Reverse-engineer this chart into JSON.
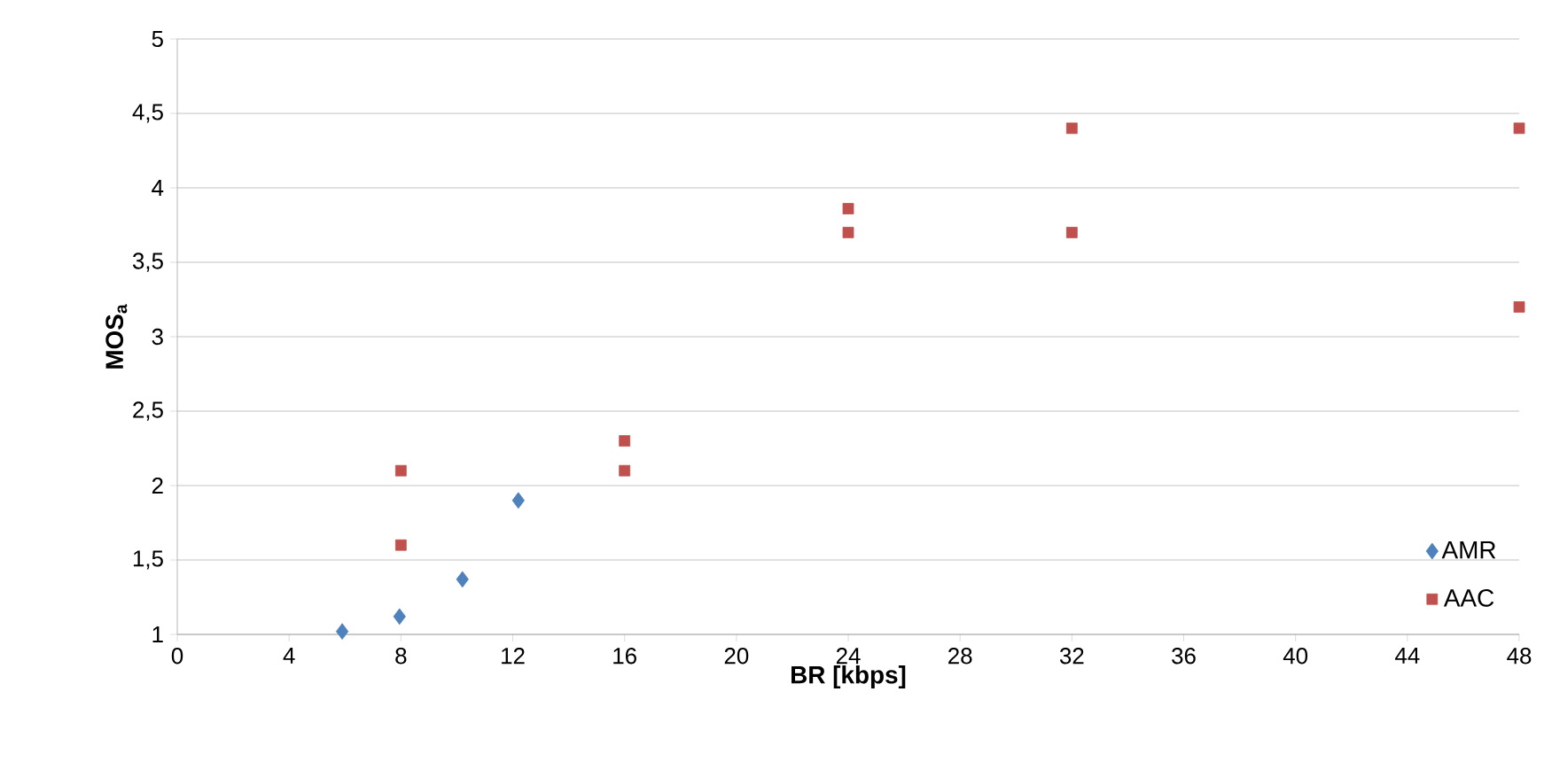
{
  "chart_data": {
    "type": "scatter",
    "xlabel": "BR [kbps]",
    "ylabel": "MOS$_{a}$",
    "series": [
      {
        "name": "AMR",
        "color": "#4f81bd",
        "marker": "diamond",
        "x": [
          5.9,
          7.95,
          10.2,
          12.2
        ],
        "values": [
          1.02,
          1.12,
          1.37,
          1.9
        ]
      },
      {
        "name": "AAC",
        "color": "#c0504d",
        "marker": "square",
        "x": [
          8,
          8,
          16,
          16,
          24,
          24,
          32,
          32,
          48,
          48
        ],
        "values": [
          2.1,
          1.6,
          2.3,
          2.1,
          3.86,
          3.7,
          4.4,
          3.7,
          4.4,
          3.2
        ]
      }
    ],
    "xlim": [
      0,
      48
    ],
    "ylim": [
      1,
      5
    ],
    "xticks": [
      0,
      4,
      8,
      12,
      16,
      20,
      24,
      28,
      32,
      36,
      40,
      44,
      48
    ],
    "yticks": [
      1,
      {
        "value": 1.5,
        "label": "1,5"
      },
      2,
      {
        "value": 2.5,
        "label": "2,5"
      },
      3,
      {
        "value": 3.5,
        "label": "3,5"
      },
      4,
      {
        "value": 4.5,
        "label": "4,5"
      },
      5
    ],
    "grid": "y",
    "legend": "bottom right"
  }
}
